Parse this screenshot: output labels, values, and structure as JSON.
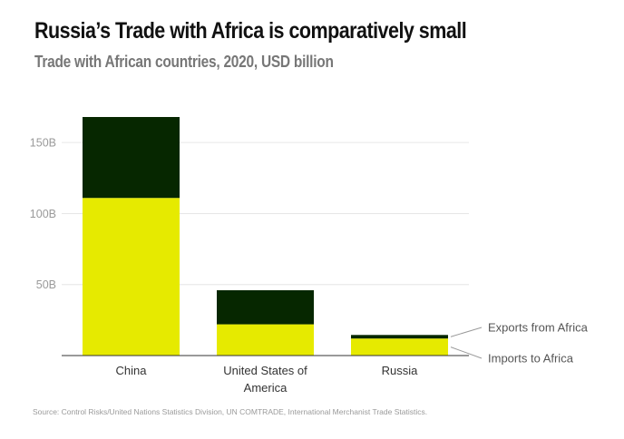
{
  "header": {
    "title": "Russia’s Trade with Africa is comparatively small",
    "subtitle": "Trade with African countries, 2020, USD billion"
  },
  "footer": {
    "source": "Source: Control Risks/United Nations Statistics Division, UN COMTRADE, International Merchanist Trade Statistics."
  },
  "colors": {
    "imports": "#e6ea00",
    "exports": "#062700",
    "grid": "#e6e6e6",
    "axis": "#333333"
  },
  "chart_data": {
    "type": "bar",
    "stacked": true,
    "title": "Russia’s Trade with Africa is comparatively small",
    "subtitle": "Trade with African countries, 2020, USD billion",
    "categories": [
      [
        "China"
      ],
      [
        "United States of",
        "America"
      ],
      [
        "Russia"
      ]
    ],
    "series": [
      {
        "name": "Imports to Africa",
        "color": "#e6ea00",
        "values": [
          111,
          22,
          12
        ]
      },
      {
        "name": "Exports from Africa",
        "color": "#062700",
        "values": [
          57,
          24,
          2.5
        ]
      }
    ],
    "y_ticks": [
      {
        "value": 50,
        "label": "50B"
      },
      {
        "value": 100,
        "label": "100B"
      },
      {
        "value": 150,
        "label": "150B"
      }
    ],
    "ylim": [
      0,
      168
    ],
    "grid": true,
    "xlabel": "",
    "ylabel": "",
    "legend_position": "right"
  }
}
